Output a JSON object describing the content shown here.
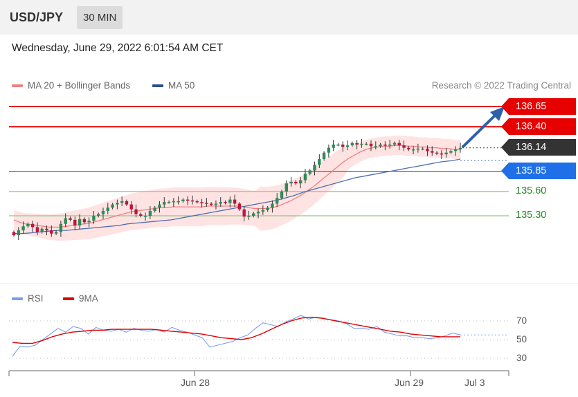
{
  "header": {
    "symbol": "USD/JPY",
    "timeframe": "30 MIN"
  },
  "datetime": "Wednesday, June 29, 2022 6:01:54 AM CET",
  "copyright": "Research © 2022 Trading Central",
  "colors": {
    "resistance": "#e60000",
    "support": "#1f6fe8",
    "target_green": "#8fc97a",
    "ma20": "#f08080",
    "band_fill": "#ffdede",
    "ma50": "#4b6fb0",
    "candle_up": "#2e8b57",
    "candle_down": "#c0143c",
    "rsi": "#7b9cf0",
    "rsi_ma": "#e00000",
    "current_tag": "#333333",
    "arrow": "#2e5fa8"
  },
  "chart_data": [
    {
      "type": "candlestick",
      "title": "USD/JPY 30 MIN",
      "legend": [
        "MA 20 + Bollinger Bands",
        "MA 50"
      ],
      "legend_placement": "top-left",
      "ylim": [
        135.0,
        136.9
      ],
      "x_labels": [
        "Jun 28",
        "Jun 29",
        "Jul 3"
      ],
      "levels": [
        {
          "value": 136.65,
          "label": "136.65",
          "kind": "resistance"
        },
        {
          "value": 136.4,
          "label": "136.40",
          "kind": "resistance"
        },
        {
          "value": 136.14,
          "label": "136.14",
          "kind": "current"
        },
        {
          "value": 135.85,
          "label": "135.85",
          "kind": "support"
        },
        {
          "value": 135.6,
          "label": "135.60",
          "kind": "target"
        },
        {
          "value": 135.3,
          "label": "135.30",
          "kind": "target"
        }
      ],
      "close": [
        135.06,
        135.12,
        135.17,
        135.2,
        135.16,
        135.1,
        135.14,
        135.12,
        135.08,
        135.1,
        135.2,
        135.27,
        135.25,
        135.18,
        135.26,
        135.22,
        135.24,
        135.3,
        135.32,
        135.36,
        135.4,
        135.44,
        135.46,
        135.48,
        135.44,
        135.38,
        135.32,
        135.3,
        135.3,
        135.36,
        135.4,
        135.44,
        135.47,
        135.47,
        135.48,
        135.48,
        135.5,
        135.49,
        135.48,
        135.47,
        135.46,
        135.45,
        135.44,
        135.45,
        135.47,
        135.46,
        135.5,
        135.45,
        135.38,
        135.29,
        135.3,
        135.33,
        135.35,
        135.37,
        135.4,
        135.45,
        135.52,
        135.6,
        135.7,
        135.72,
        135.7,
        135.74,
        135.82,
        135.86,
        135.93,
        136.0,
        136.08,
        136.14,
        136.18,
        136.18,
        136.15,
        136.17,
        136.2,
        136.18,
        136.19,
        136.19,
        136.16,
        136.16,
        136.18,
        136.17,
        136.18,
        136.2,
        136.17,
        136.14,
        136.12,
        136.12,
        136.13,
        136.13,
        136.1,
        136.08,
        136.07,
        136.06,
        136.08,
        136.1,
        136.12,
        136.14
      ],
      "ma20": [
        135.25,
        135.22,
        135.2,
        135.19,
        135.18,
        135.17,
        135.16,
        135.16,
        135.16,
        135.17,
        135.18,
        135.19,
        135.2,
        135.21,
        135.23,
        135.25,
        135.27,
        135.29,
        135.31,
        135.33,
        135.35,
        135.36,
        135.37,
        135.38,
        135.39,
        135.4,
        135.4,
        135.41,
        135.41,
        135.41,
        135.41,
        135.41,
        135.41,
        135.42,
        135.42,
        135.42,
        135.42,
        135.42,
        135.42,
        135.41,
        135.4,
        135.39,
        135.39,
        135.39,
        135.4,
        135.42,
        135.45,
        135.48,
        135.52,
        135.56,
        135.61,
        135.66,
        135.72,
        135.78,
        135.84,
        135.9,
        135.96,
        136.01,
        136.05,
        136.09,
        136.12,
        136.14,
        136.15,
        136.16,
        136.16,
        136.17,
        136.17,
        136.16,
        136.16,
        136.15,
        136.15,
        136.14,
        136.14,
        136.13,
        136.13,
        136.12,
        136.12
      ],
      "ma50": [
        135.08,
        135.08,
        135.09,
        135.1,
        135.11,
        135.12,
        135.12,
        135.13,
        135.14,
        135.15,
        135.16,
        135.17,
        135.18,
        135.2,
        135.21,
        135.22,
        135.23,
        135.24,
        135.25,
        135.27,
        135.29,
        135.31,
        135.33,
        135.35,
        135.37,
        135.39,
        135.41,
        135.43,
        135.45,
        135.47,
        135.49,
        135.52,
        135.55,
        135.59,
        135.62,
        135.65,
        135.68,
        135.71,
        135.74,
        135.77,
        135.79,
        135.81,
        135.83,
        135.85,
        135.87,
        135.89,
        135.91,
        135.93,
        135.95,
        135.97,
        135.98,
        136.0
      ]
    },
    {
      "type": "line",
      "title": "RSI",
      "series": [
        {
          "name": "RSI",
          "values": [
            32,
            43,
            42,
            44,
            50,
            56,
            62,
            58,
            64,
            62,
            56,
            63,
            60,
            59,
            61,
            58,
            62,
            60,
            59,
            61,
            58,
            63,
            60,
            58,
            55,
            52,
            42,
            44,
            46,
            48,
            52,
            55,
            62,
            68,
            66,
            64,
            69,
            72,
            76,
            72,
            74,
            73,
            71,
            70,
            67,
            62,
            62,
            61,
            64,
            58,
            56,
            54,
            54,
            52,
            52,
            51,
            52,
            54,
            57,
            55
          ]
        },
        {
          "name": "9MA",
          "values": [
            47,
            46,
            46,
            49,
            53,
            56,
            58,
            59,
            60,
            60,
            61,
            61,
            61,
            61,
            61,
            60,
            59,
            58,
            57,
            56,
            54,
            52,
            51,
            50,
            52,
            56,
            61,
            66,
            70,
            73,
            74,
            73,
            71,
            69,
            67,
            65,
            63,
            61,
            59,
            58,
            56,
            55,
            54,
            53,
            53,
            53
          ]
        }
      ],
      "ylim": [
        25,
        80
      ],
      "ticks": [
        "70",
        "50",
        "30"
      ]
    }
  ]
}
